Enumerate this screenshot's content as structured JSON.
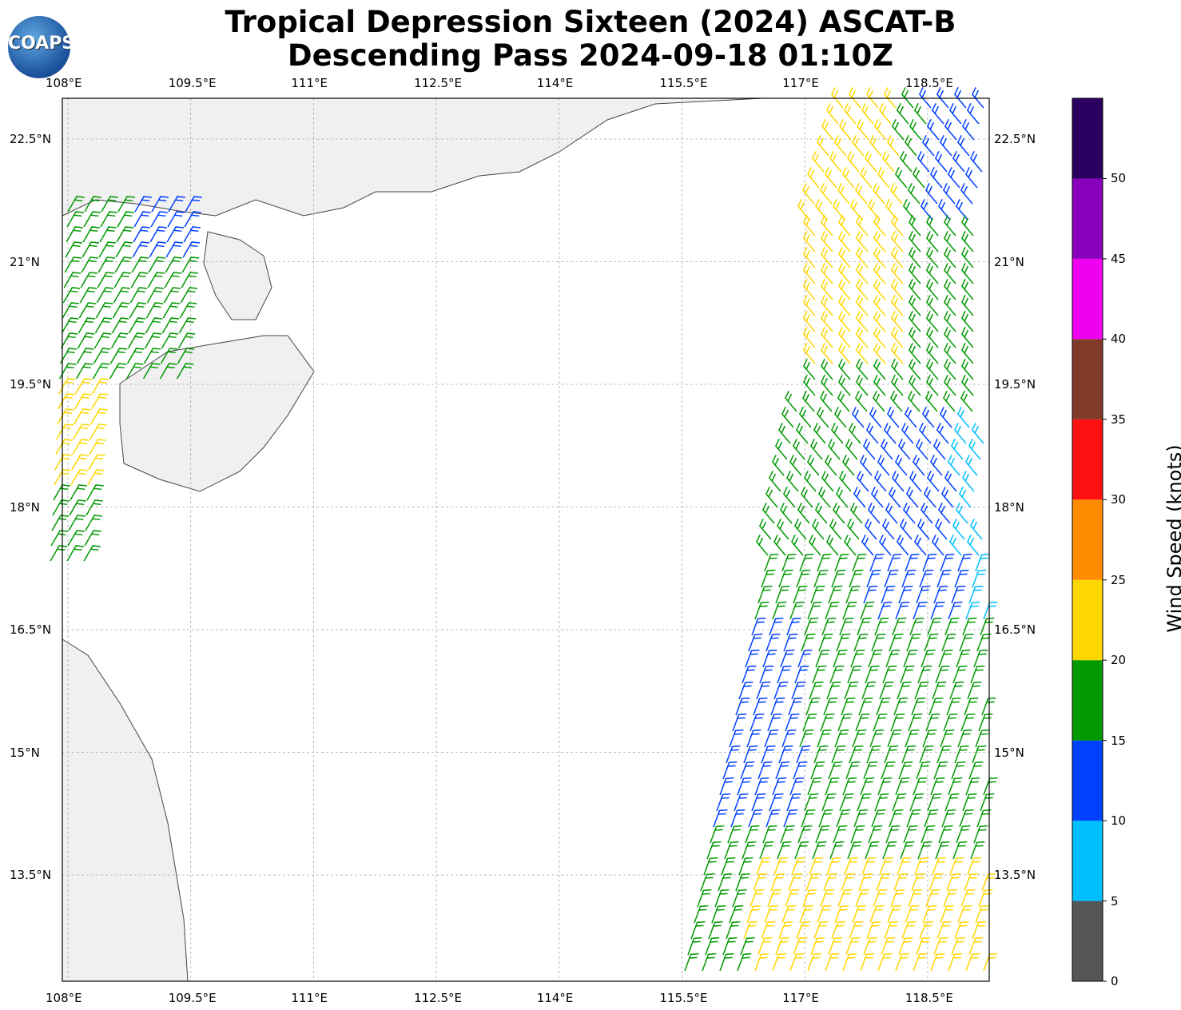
{
  "title_line1": "Tropical Depression Sixteen (2024) ASCAT-B",
  "title_line2": "Descending Pass 2024-09-18 01:10Z",
  "logo_text": "COAPS",
  "lon_ticks": [
    "108°E",
    "109.5°E",
    "111°E",
    "112.5°E",
    "114°E",
    "115.5°E",
    "117°E",
    "118.5°E"
  ],
  "lat_ticks": [
    "22.5°N",
    "21°N",
    "19.5°N",
    "18°N",
    "16.5°N",
    "15°N",
    "13.5°N"
  ],
  "colorbar": {
    "label": "Wind Speed (knots)",
    "ticks": [
      "0",
      "5",
      "10",
      "15",
      "20",
      "25",
      "30",
      "35",
      "40",
      "45",
      "50"
    ],
    "colors": [
      "#555555",
      "#00bfff",
      "#0040ff",
      "#009900",
      "#ffd700",
      "#ff8c00",
      "#ff1010",
      "#803a28",
      "#f000f0",
      "#8800bb",
      "#2b0060"
    ]
  }
}
